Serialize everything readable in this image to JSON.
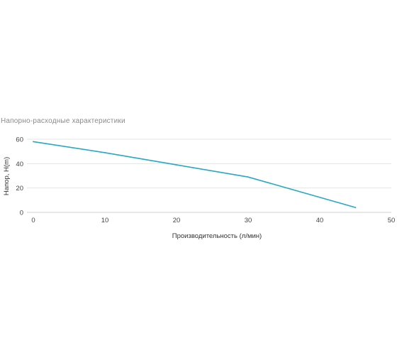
{
  "chart_data": {
    "type": "line",
    "title": "Напорно-расходные характеристики",
    "xlabel": "Производительность (л/мин)",
    "ylabel": "Напор, Н(m)",
    "xlim": [
      0,
      50
    ],
    "ylim": [
      0,
      60
    ],
    "x_ticks": [
      0,
      10,
      20,
      30,
      40,
      50
    ],
    "y_ticks": [
      0,
      20,
      40,
      60
    ],
    "grid": "horizontal",
    "legend": "none",
    "series": [
      {
        "color": "#27a8c5",
        "points": [
          {
            "x": 0,
            "y": 58
          },
          {
            "x": 10,
            "y": 49
          },
          {
            "x": 20,
            "y": 39
          },
          {
            "x": 30,
            "y": 29
          },
          {
            "x": 45,
            "y": 4
          }
        ]
      }
    ]
  }
}
